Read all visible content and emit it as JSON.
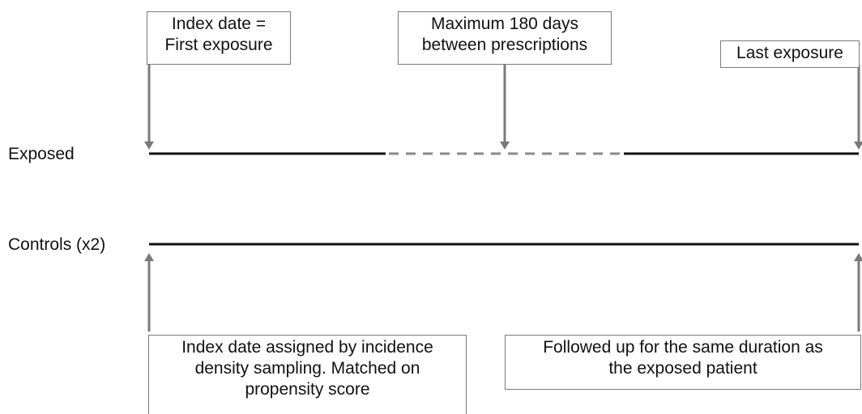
{
  "rows": {
    "exposed_label": "Exposed",
    "controls_label": "Controls (x2)"
  },
  "boxes": {
    "index_date": {
      "lines": [
        "Index date =",
        "First exposure"
      ]
    },
    "max_days": {
      "lines": [
        "Maximum 180 days",
        "between prescriptions"
      ]
    },
    "last_exposure": {
      "lines": [
        "Last exposure"
      ]
    },
    "control_index": {
      "lines": [
        "Index date assigned by incidence",
        "density sampling. Matched on",
        "propensity score"
      ]
    },
    "followed_up": {
      "lines": [
        "Followed up for the same duration as",
        "the exposed patient"
      ]
    }
  },
  "colors": {
    "timeline": "#111111",
    "dashed_segment": "#8a8a8a",
    "arrow": "#7a7a7a",
    "box_border": "#7a7a7a"
  }
}
